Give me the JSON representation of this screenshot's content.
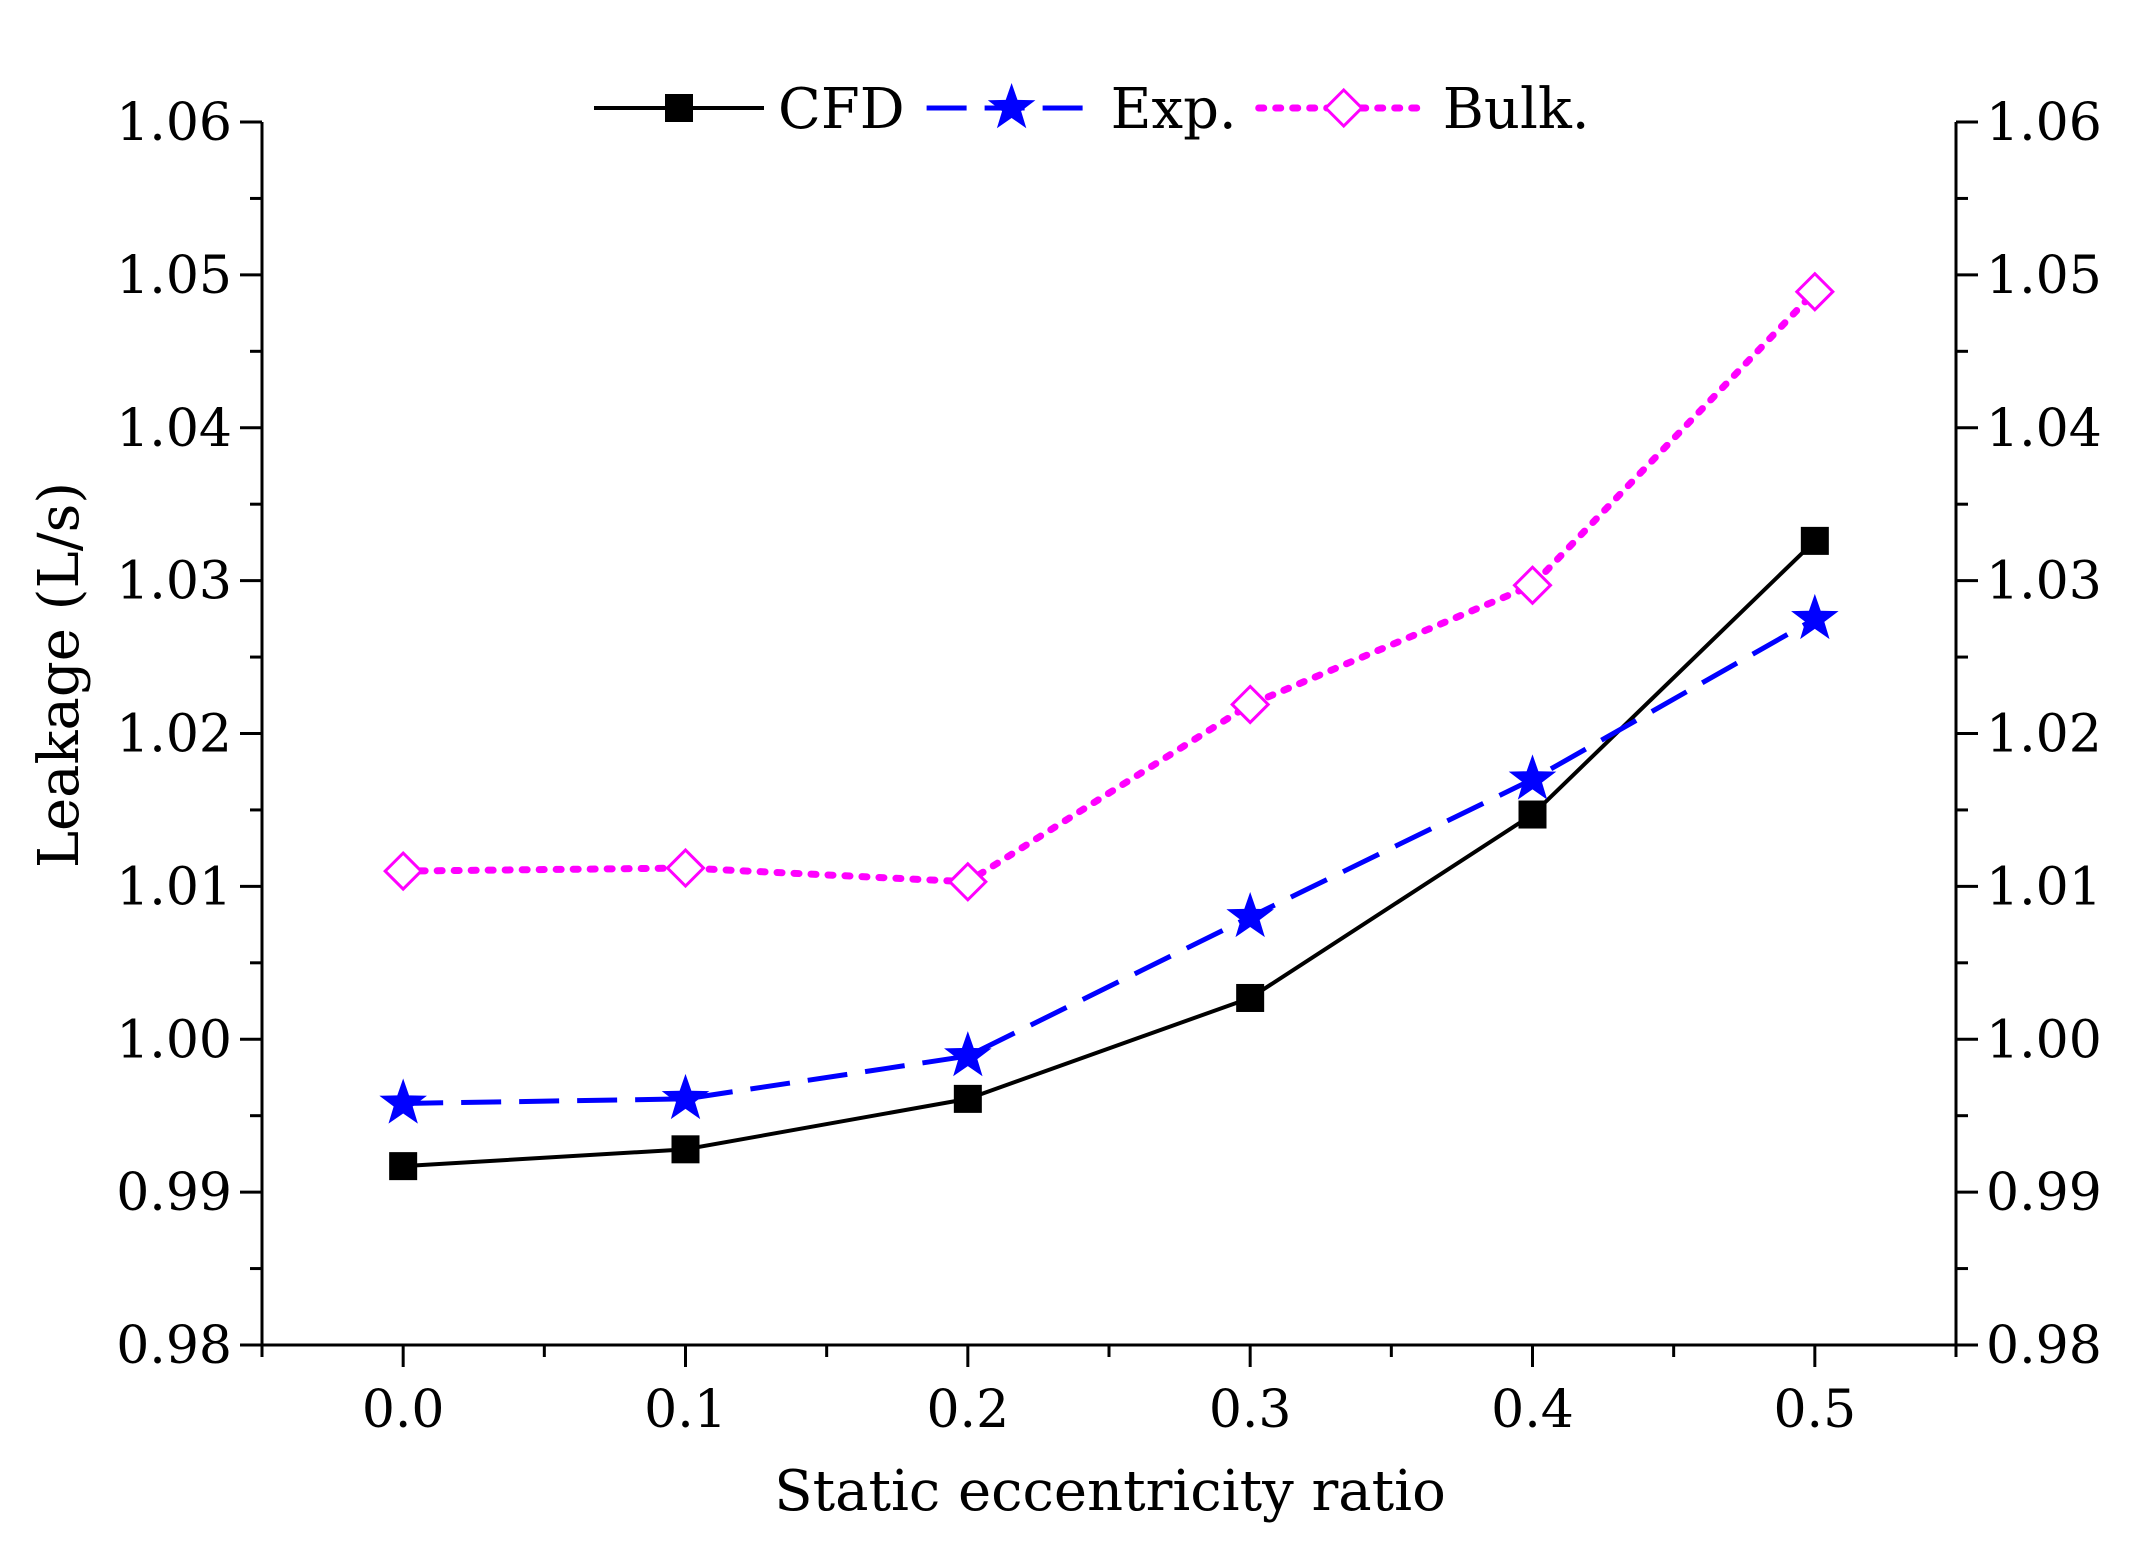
{
  "chart_data": {
    "type": "line",
    "xlabel": "Static eccentricity ratio",
    "ylabel": "Leakage (L/s)",
    "xlim": [
      -0.05,
      0.55
    ],
    "ylim": [
      0.98,
      1.06
    ],
    "x_ticks": [
      0.0,
      0.1,
      0.2,
      0.3,
      0.4,
      0.5
    ],
    "x_tick_labels": [
      "0.0",
      "0.1",
      "0.2",
      "0.3",
      "0.4",
      "0.5"
    ],
    "y_ticks": [
      0.98,
      0.99,
      1.0,
      1.01,
      1.02,
      1.03,
      1.04,
      1.05,
      1.06
    ],
    "y_tick_labels": [
      "0.98",
      "0.99",
      "1.00",
      "1.01",
      "1.02",
      "1.03",
      "1.04",
      "1.05",
      "1.06"
    ],
    "right_axis_mirrored": true,
    "grid": false,
    "legend_position": "top-center",
    "x": [
      0.0,
      0.1,
      0.2,
      0.3,
      0.4,
      0.5
    ],
    "series": [
      {
        "name": "CFD",
        "values": [
          0.9917,
          0.9928,
          0.9961,
          1.0027,
          1.0147,
          1.0326
        ],
        "color": "#000000",
        "line_style": "solid",
        "marker": "filled-square"
      },
      {
        "name": "Exp.",
        "values": [
          0.9958,
          0.9961,
          0.9989,
          1.008,
          1.017,
          1.0275
        ],
        "color": "#0000ff",
        "line_style": "dashed",
        "marker": "filled-star"
      },
      {
        "name": "Bulk.",
        "values": [
          1.011,
          1.0112,
          1.0103,
          1.0219,
          1.0297,
          1.0489
        ],
        "color": "#ff00ff",
        "line_style": "dotted",
        "marker": "open-diamond"
      }
    ]
  }
}
